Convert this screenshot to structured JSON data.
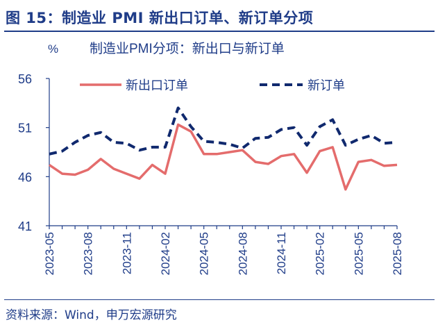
{
  "figure": {
    "title": "图 15：制造业 PMI 新出口订单、新订单分项",
    "source": "资料来源：Wind，申万宏源研究"
  },
  "colors": {
    "export": "#e46c6c",
    "new_orders": "#10296e",
    "axis": "#1f3c88",
    "text": "#1f3c88"
  },
  "chart_data": {
    "type": "line",
    "title": "制造业PMI分项：新出口与新订单",
    "ylabel": "%",
    "ylim": [
      41,
      56
    ],
    "yticks": [
      41,
      46,
      51,
      56
    ],
    "grid": false,
    "legend": "top",
    "x": [
      "2023-05",
      "2023-06",
      "2023-07",
      "2023-08",
      "2023-09",
      "2023-10",
      "2023-11",
      "2023-12",
      "2024-01",
      "2024-02",
      "2024-03",
      "2024-04",
      "2024-05",
      "2024-06",
      "2024-07",
      "2024-08",
      "2024-09",
      "2024-10",
      "2024-11",
      "2024-12",
      "2025-01",
      "2025-02",
      "2025-03",
      "2025-04",
      "2025-05",
      "2025-06",
      "2025-07",
      "2025-08"
    ],
    "xtick_labels": [
      "2023-05",
      "2023-08",
      "2023-11",
      "2024-02",
      "2024-05",
      "2024-08",
      "2024-11",
      "2025-02",
      "2025-05",
      "2025-08"
    ],
    "series": [
      {
        "name": "新出口订单",
        "style": "solid",
        "color": "#e46c6c",
        "values": [
          47.2,
          46.3,
          46.2,
          46.7,
          47.8,
          46.8,
          46.3,
          45.8,
          47.2,
          46.3,
          51.3,
          50.6,
          48.3,
          48.3,
          48.5,
          48.7,
          47.5,
          47.3,
          48.1,
          48.3,
          46.4,
          48.6,
          49.0,
          44.7,
          47.5,
          47.7,
          47.1,
          47.2
        ]
      },
      {
        "name": "新订单",
        "style": "dashed",
        "color": "#10296e",
        "values": [
          48.3,
          48.6,
          49.5,
          50.2,
          50.5,
          49.5,
          49.4,
          48.7,
          49.0,
          49.0,
          53.0,
          51.1,
          49.6,
          49.5,
          49.3,
          48.9,
          49.9,
          50.0,
          50.8,
          51.0,
          49.2,
          51.1,
          51.8,
          49.2,
          49.8,
          50.2,
          49.4,
          49.5
        ]
      }
    ]
  }
}
